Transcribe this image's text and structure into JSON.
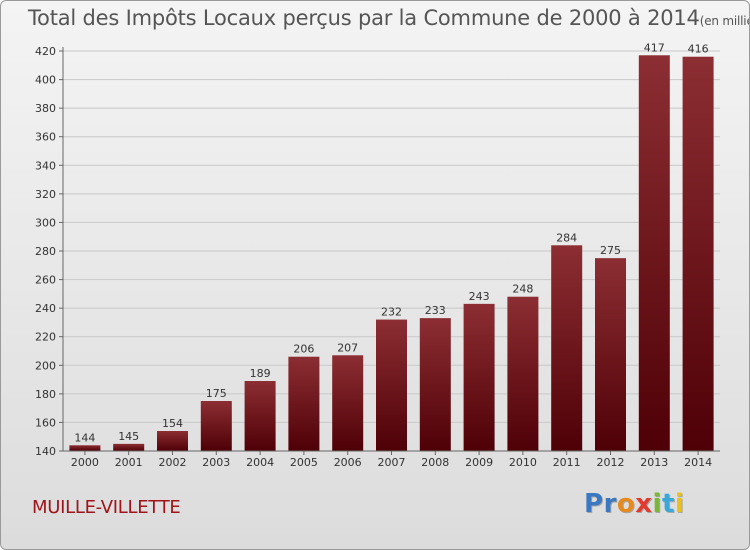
{
  "title": "Total des Impôts Locaux perçus par la Commune de 2000 à 2014",
  "title_unit": "(en milliers d'€)",
  "commune": "MUILLE-VILLETTE",
  "logo": {
    "letters": [
      "P",
      "r",
      "o",
      "x",
      "i",
      "t",
      "i"
    ],
    "colors": [
      "#3b78c2",
      "#3b78c2",
      "#e58a1f",
      "#e23a2e",
      "#7bb540",
      "#3aa7d8",
      "#e8c21a"
    ]
  },
  "colors": {
    "bar_top": "#8c2e33",
    "bar_bottom": "#4e0006",
    "grid": "#c8c8c8"
  },
  "chart_data": {
    "type": "bar",
    "title": "Total des Impôts Locaux perçus par la Commune de 2000 à 2014",
    "xlabel": "",
    "ylabel": "",
    "categories": [
      "2000",
      "2001",
      "2002",
      "2003",
      "2004",
      "2005",
      "2006",
      "2007",
      "2008",
      "2009",
      "2010",
      "2011",
      "2012",
      "2013",
      "2014"
    ],
    "values": [
      144,
      145,
      154,
      175,
      189,
      206,
      207,
      232,
      233,
      243,
      248,
      284,
      275,
      417,
      416
    ],
    "data_labels": [
      "144",
      "145",
      "154",
      "175",
      "189",
      "206",
      "207",
      "232",
      "233",
      "243",
      "248",
      "284",
      "275",
      "417",
      "416"
    ],
    "yticks": [
      140,
      160,
      180,
      200,
      220,
      240,
      260,
      280,
      300,
      320,
      340,
      360,
      380,
      400,
      420
    ],
    "ytick_labels": [
      "140",
      "160",
      "180",
      "200",
      "220",
      "240",
      "260",
      "280",
      "300",
      "320",
      "340",
      "360",
      "380",
      "400",
      "420"
    ],
    "ylim": [
      140,
      420
    ],
    "grid": true
  }
}
